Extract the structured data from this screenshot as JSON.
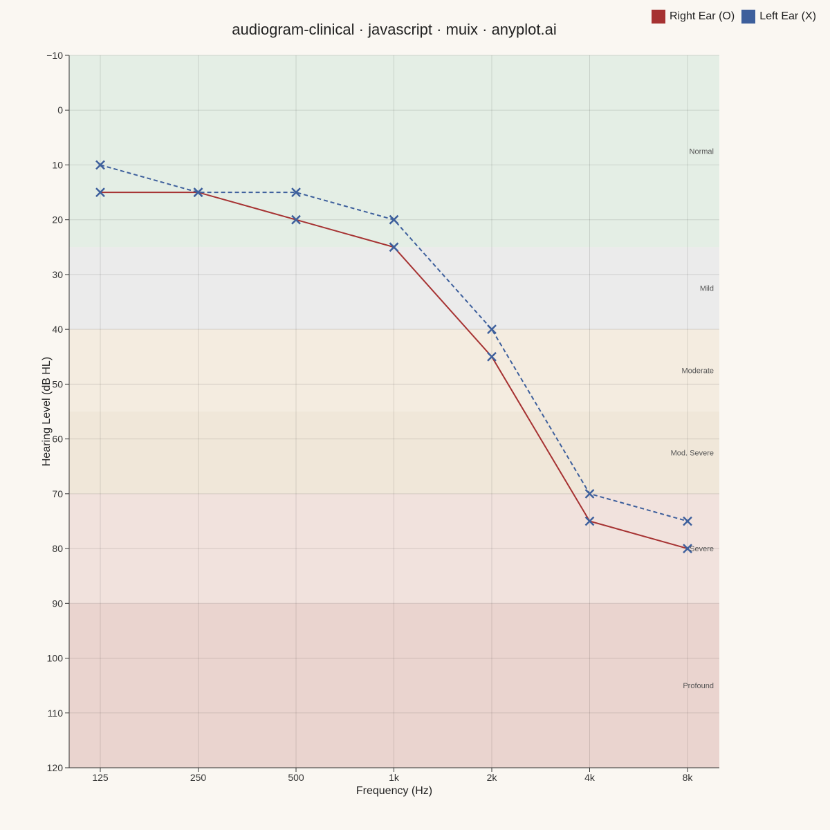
{
  "chart_data": {
    "type": "line",
    "title": "audiogram-clinical · javascript · muix · anyplot.ai",
    "xlabel": "Frequency (Hz)",
    "ylabel": "Hearing Level (dB HL)",
    "categories": [
      "125",
      "250",
      "500",
      "1k",
      "2k",
      "4k",
      "8k"
    ],
    "ylim": [
      -10,
      120
    ],
    "y_inverted": true,
    "y_ticks": [
      "−10",
      "0",
      "10",
      "20",
      "30",
      "40",
      "50",
      "60",
      "70",
      "80",
      "90",
      "100",
      "110",
      "120"
    ],
    "grid": true,
    "legend_position": "top-right",
    "series": [
      {
        "name": "Right Ear (O)",
        "values": [
          15,
          15,
          20,
          25,
          45,
          75,
          80
        ],
        "color": "#a63232",
        "line_style": "solid",
        "marker": "x"
      },
      {
        "name": "Left Ear (X)",
        "values": [
          10,
          15,
          15,
          20,
          40,
          70,
          75
        ],
        "color": "#3d5f9c",
        "line_style": "dashed",
        "marker": "x"
      }
    ],
    "bands": [
      {
        "label": "Normal",
        "from": -10,
        "to": 25,
        "color": "#e4eee5"
      },
      {
        "label": "Mild",
        "from": 25,
        "to": 40,
        "color": "#ebebeb"
      },
      {
        "label": "Moderate",
        "from": 40,
        "to": 55,
        "color": "#f4ece0"
      },
      {
        "label": "Mod. Severe",
        "from": 55,
        "to": 70,
        "color": "#f0e7d9"
      },
      {
        "label": "Severe",
        "from": 70,
        "to": 90,
        "color": "#f1e2dd"
      },
      {
        "label": "Profound",
        "from": 90,
        "to": 120,
        "color": "#ead4cf"
      }
    ]
  }
}
